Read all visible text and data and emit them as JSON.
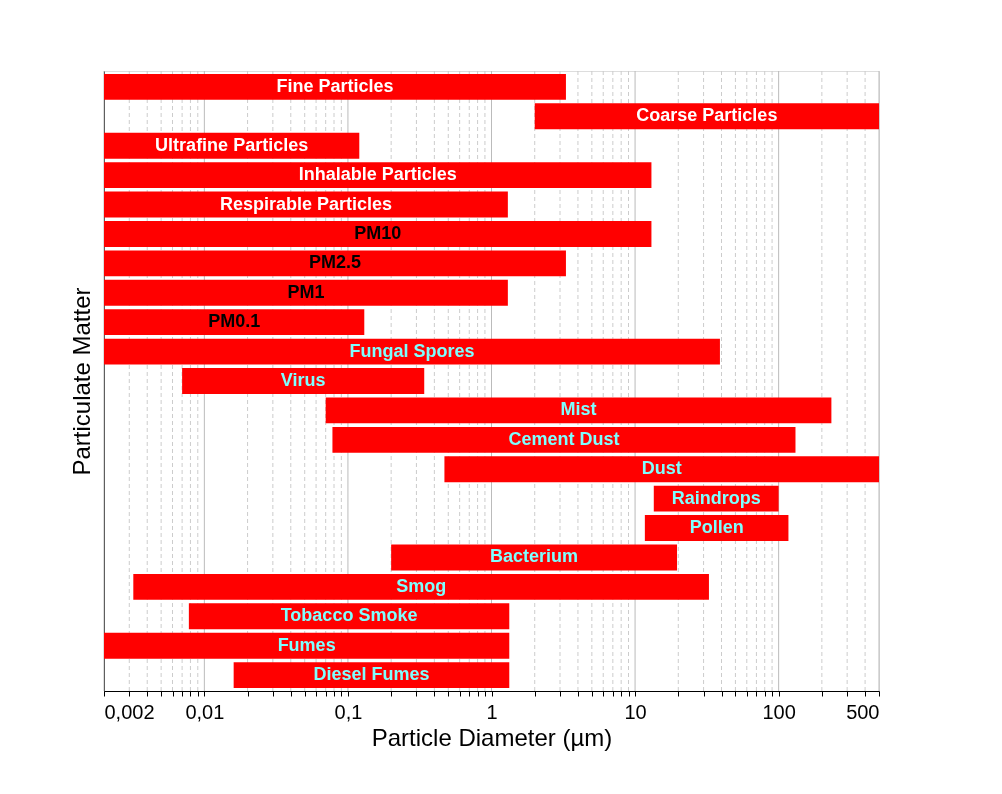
{
  "chart_data": {
    "type": "bar",
    "orientation": "horizontal",
    "log": "x",
    "grid": "x",
    "tick_labels": "x",
    "xlabel": "Particle Diameter (µm)",
    "ylabel": "Particulate Matter",
    "categories": [
      "Fine Particles",
      "Coarse Particles",
      "Ultrafine Particles",
      "Inhalable Particles",
      "Respirable Particles",
      "PM10",
      "PM2.5",
      "PM1",
      "PM0.1",
      "Fungal Spores",
      "Virus",
      "Mist",
      "Cement Dust",
      "Dust",
      "Raindrops",
      "Pollen",
      "Bacterium",
      "Smog",
      "Tobacco Smoke",
      "Fumes",
      "Diesel Fumes"
    ],
    "base": [
      0.002,
      2,
      0.002,
      0.002,
      0.002,
      0.002,
      0.002,
      0.002,
      0.002,
      0.002,
      0.007,
      0.07,
      0.078,
      0.47,
      13.5,
      11.7,
      0.2,
      0.0032,
      0.0078,
      0.002,
      0.016
    ],
    "values": [
      3.298,
      498,
      0.118,
      12.998,
      1.298,
      12.998,
      3.298,
      1.298,
      0.128,
      38.998,
      0.333,
      232.93,
      130.922,
      499.53,
      86.5,
      105.3,
      19.4,
      32.6968,
      1.3222,
      1.328,
      1.314
    ],
    "colors": [
      "#ff0000",
      "#ff0000",
      "#ff0000",
      "#ff0000",
      "#ff0000",
      "#ff0000",
      "#ff0000",
      "#ff0000",
      "#ff0000",
      "#ff0000",
      "#ff0000",
      "#ff0000",
      "#ff0000",
      "#ff0000",
      "#ff0000",
      "#ff0000",
      "#ff0000",
      "#ff0000",
      "#ff0000",
      "#ff0000",
      "#ff0000"
    ],
    "xlim": [
      0.002,
      500
    ],
    "xticks": [
      {
        "value": 0.002,
        "label": "0,002"
      },
      {
        "value": 0.003,
        "label": null
      },
      {
        "value": 0.004,
        "label": null
      },
      {
        "value": 0.005,
        "label": null
      },
      {
        "value": 0.006,
        "label": null
      },
      {
        "value": 0.007,
        "label": null
      },
      {
        "value": 0.008,
        "label": null
      },
      {
        "value": 0.009,
        "label": null
      },
      {
        "value": 0.01,
        "label": "0,01"
      },
      {
        "value": 0.02,
        "label": null
      },
      {
        "value": 0.03,
        "label": null
      },
      {
        "value": 0.04,
        "label": null
      },
      {
        "value": 0.05,
        "label": null
      },
      {
        "value": 0.06,
        "label": null
      },
      {
        "value": 0.07,
        "label": null
      },
      {
        "value": 0.08,
        "label": null
      },
      {
        "value": 0.09,
        "label": null
      },
      {
        "value": 0.1,
        "label": "0,1"
      },
      {
        "value": 0.2,
        "label": null
      },
      {
        "value": 0.3,
        "label": null
      },
      {
        "value": 0.4,
        "label": null
      },
      {
        "value": 0.5,
        "label": null
      },
      {
        "value": 0.6,
        "label": null
      },
      {
        "value": 0.7,
        "label": null
      },
      {
        "value": 0.8,
        "label": null
      },
      {
        "value": 0.9,
        "label": null
      },
      1,
      {
        "value": 2,
        "label": null
      },
      {
        "value": 3,
        "label": null
      },
      {
        "value": 4,
        "label": null
      },
      {
        "value": 5,
        "label": null
      },
      {
        "value": 6,
        "label": null
      },
      {
        "value": 7,
        "label": null
      },
      {
        "value": 8,
        "label": null
      },
      {
        "value": 9,
        "label": null
      },
      10,
      {
        "value": 20,
        "label": null
      },
      {
        "value": 30,
        "label": null
      },
      {
        "value": 40,
        "label": null
      },
      {
        "value": 50,
        "label": null
      },
      {
        "value": 60,
        "label": null
      },
      {
        "value": 70,
        "label": null
      },
      {
        "value": 80,
        "label": null
      },
      {
        "value": 90,
        "label": null
      },
      100,
      {
        "value": 200,
        "label": null
      },
      {
        "value": 300,
        "label": null
      },
      {
        "value": 400,
        "label": null
      },
      500
    ]
  }
}
